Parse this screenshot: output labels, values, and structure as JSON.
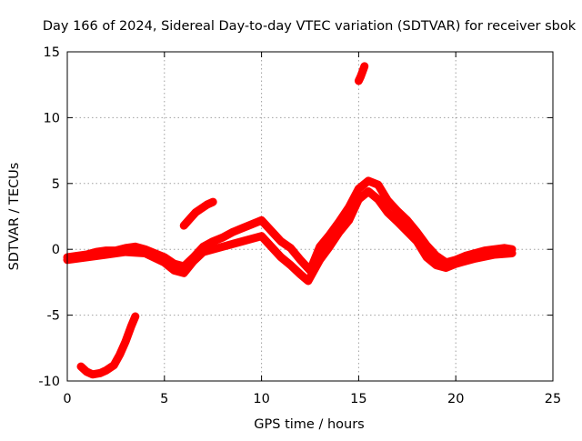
{
  "chart_data": {
    "type": "scatter",
    "title": "Day 166 of 2024, Sidereal Day-to-day VTEC variation (SDTVAR) for receiver sbok",
    "xlabel": "GPS time / hours",
    "ylabel": "SDTVAR / TECUs",
    "xlim": [
      0,
      25
    ],
    "ylim": [
      -10,
      15
    ],
    "xticks": [
      0,
      5,
      10,
      15,
      20,
      25
    ],
    "yticks": [
      -10,
      -5,
      0,
      5,
      10,
      15
    ],
    "grid": true,
    "marker": "plus",
    "color": "#ff0000",
    "series": [
      {
        "name": "main",
        "x": [
          0.0,
          0.5,
          1.0,
          1.5,
          2.0,
          2.5,
          3.0,
          3.5,
          4.0,
          4.5,
          5.0,
          5.5,
          6.0,
          6.5,
          7.0,
          7.5,
          8.0,
          8.5,
          9.0,
          9.5,
          10.0,
          10.5,
          11.0,
          11.5,
          12.0,
          12.5,
          13.0,
          13.5,
          14.0,
          14.5,
          15.0,
          15.5,
          16.0,
          16.5,
          17.0,
          17.5,
          18.0,
          18.5,
          19.0,
          19.5,
          20.0,
          20.5,
          21.0,
          21.5,
          22.0,
          22.5,
          22.9
        ],
        "y": [
          -0.6,
          -0.5,
          -0.4,
          -0.2,
          -0.1,
          -0.1,
          0.1,
          0.2,
          0.0,
          -0.3,
          -0.6,
          -1.1,
          -1.3,
          -0.6,
          0.2,
          0.6,
          0.9,
          1.3,
          1.6,
          1.9,
          2.2,
          1.4,
          0.6,
          0.1,
          -0.8,
          -1.6,
          0.2,
          1.1,
          2.1,
          3.2,
          4.6,
          5.2,
          4.9,
          3.7,
          2.9,
          2.2,
          1.3,
          0.3,
          -0.5,
          -1.0,
          -0.8,
          -0.5,
          -0.3,
          -0.1,
          0.0,
          0.1,
          0.0
        ]
      },
      {
        "name": "main-lower-envelope",
        "x": [
          0.0,
          1.0,
          2.0,
          3.0,
          4.0,
          5.0,
          5.5,
          6.0,
          6.5,
          7.0,
          8.0,
          9.0,
          10.0,
          10.5,
          11.0,
          11.5,
          12.0,
          12.4,
          13.0,
          13.5,
          14.0,
          14.5,
          15.0,
          15.5,
          16.0,
          16.5,
          17.0,
          18.0,
          18.5,
          19.0,
          19.5,
          20.0,
          21.0,
          22.0,
          22.9
        ],
        "y": [
          -0.8,
          -0.6,
          -0.4,
          -0.2,
          -0.3,
          -1.0,
          -1.6,
          -1.8,
          -0.9,
          -0.2,
          0.2,
          0.6,
          1.0,
          0.2,
          -0.6,
          -1.2,
          -1.9,
          -2.4,
          -0.8,
          0.2,
          1.3,
          2.2,
          3.8,
          4.4,
          3.8,
          2.8,
          2.1,
          0.6,
          -0.6,
          -1.2,
          -1.4,
          -1.1,
          -0.7,
          -0.4,
          -0.3
        ]
      },
      {
        "name": "segment-morning",
        "x": [
          0.7,
          1.0,
          1.3,
          1.7,
          2.0,
          2.4,
          2.7,
          3.0,
          3.3,
          3.5
        ],
        "y": [
          -8.9,
          -9.3,
          -9.5,
          -9.4,
          -9.2,
          -8.8,
          -8.0,
          -7.0,
          -5.8,
          -5.1
        ]
      },
      {
        "name": "segment-arc",
        "x": [
          6.0,
          6.3,
          6.6,
          6.9,
          7.2,
          7.5
        ],
        "y": [
          1.8,
          2.3,
          2.8,
          3.1,
          3.4,
          3.6
        ]
      },
      {
        "name": "segment-spike",
        "x": [
          15.0,
          15.1,
          15.2,
          15.3
        ],
        "y": [
          12.8,
          13.1,
          13.5,
          13.9
        ]
      }
    ]
  }
}
